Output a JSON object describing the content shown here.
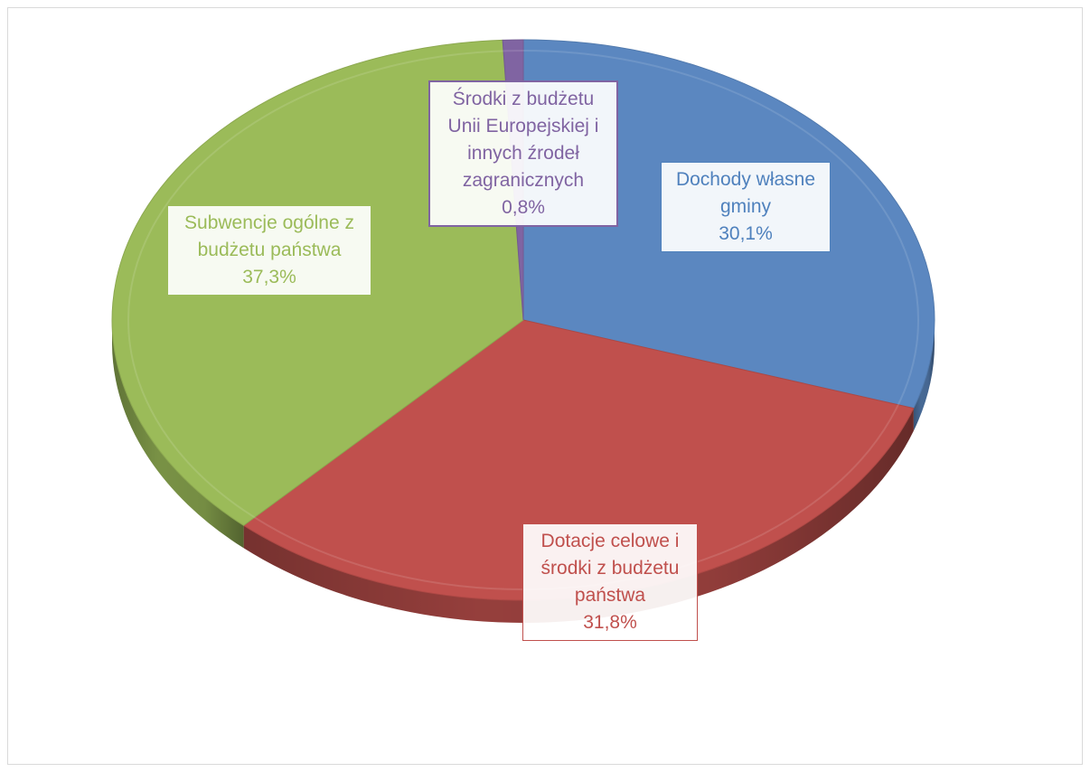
{
  "chart_data": {
    "type": "pie",
    "style": "3d",
    "title": "",
    "legend": "none",
    "slices": [
      {
        "label": "Dochody własne gminy",
        "value": 30.1,
        "value_label": "30,1%",
        "color": "#5b87c0",
        "label_color": "#4f81bd"
      },
      {
        "label": "Dotacje celowe i środki z budżetu państwa",
        "value": 31.8,
        "value_label": "31,8%",
        "color": "#c0504d",
        "label_color": "#c0504d"
      },
      {
        "label": "Subwencje ogólne z budżetu państwa",
        "value": 37.3,
        "value_label": "37,3%",
        "color": "#9bbb59",
        "label_color": "#9bbb59"
      },
      {
        "label": "Środki z budżetu Unii Europejskiej i innych źrodeł zagranicznych",
        "value": 0.8,
        "value_label": "0,8%",
        "color": "#8064a2",
        "label_color": "#8064a2"
      }
    ]
  },
  "labels": {
    "dochody": {
      "lines": [
        "Dochody własne",
        "gminy"
      ],
      "value": "30,1%"
    },
    "dotacje": {
      "lines": [
        "Dotacje celowe i",
        "środki z budżetu",
        "państwa"
      ],
      "value": "31,8%"
    },
    "subwencje": {
      "lines": [
        "Subwencje ogólne z",
        "budżetu  państwa"
      ],
      "value": "37,3%"
    },
    "srodki_ue": {
      "lines": [
        "Środki z budżetu",
        "Unii Europejskiej i",
        "innych źrodeł",
        "zagranicznych"
      ],
      "value": "0,8%"
    }
  }
}
